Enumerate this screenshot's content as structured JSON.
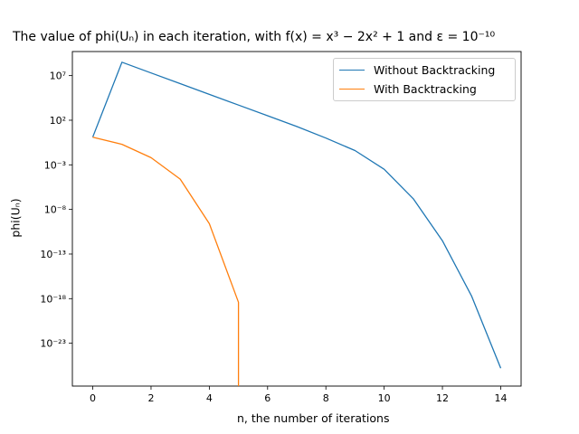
{
  "chart_data": {
    "type": "line",
    "title": "The value of phi(Uₙ) in each iteration, with f(x) = x³ − 2x² + 1 and ε = 10⁻¹⁰",
    "xlabel": "n, the number of iterations",
    "ylabel": "phi(Uₙ)",
    "x_ticks": [
      0,
      2,
      4,
      6,
      8,
      10,
      12,
      14
    ],
    "y_scale": "log",
    "y_ticks_exponents": [
      7,
      2,
      -3,
      -8,
      -13,
      -18,
      -23
    ],
    "y_tick_labels": [
      "10⁷",
      "10²",
      "10⁻³",
      "10⁻⁸",
      "10⁻¹³",
      "10⁻¹⁸",
      "10⁻²³"
    ],
    "xlim": [
      -0.7,
      14.7
    ],
    "ylim_log10": [
      -27.8,
      9.7
    ],
    "grid": false,
    "legend_position": "upper-right",
    "series": [
      {
        "name": "Without Backtracking",
        "color": "#1f77b4",
        "x": [
          0,
          1,
          2,
          3,
          4,
          5,
          6,
          7,
          8,
          9,
          10,
          11,
          12,
          13,
          14
        ],
        "log10_y": [
          0.1,
          8.5,
          7.3,
          6.1,
          4.9,
          3.7,
          2.5,
          1.3,
          0.0,
          -1.4,
          -3.5,
          -6.8,
          -11.5,
          -17.7,
          -25.8
        ]
      },
      {
        "name": "With Backtracking",
        "color": "#ff7f0e",
        "x": [
          0,
          1,
          2,
          3,
          4,
          5,
          5
        ],
        "log10_y": [
          0.1,
          -0.7,
          -2.2,
          -4.6,
          -9.6,
          -18.4,
          -27.8
        ]
      }
    ]
  }
}
